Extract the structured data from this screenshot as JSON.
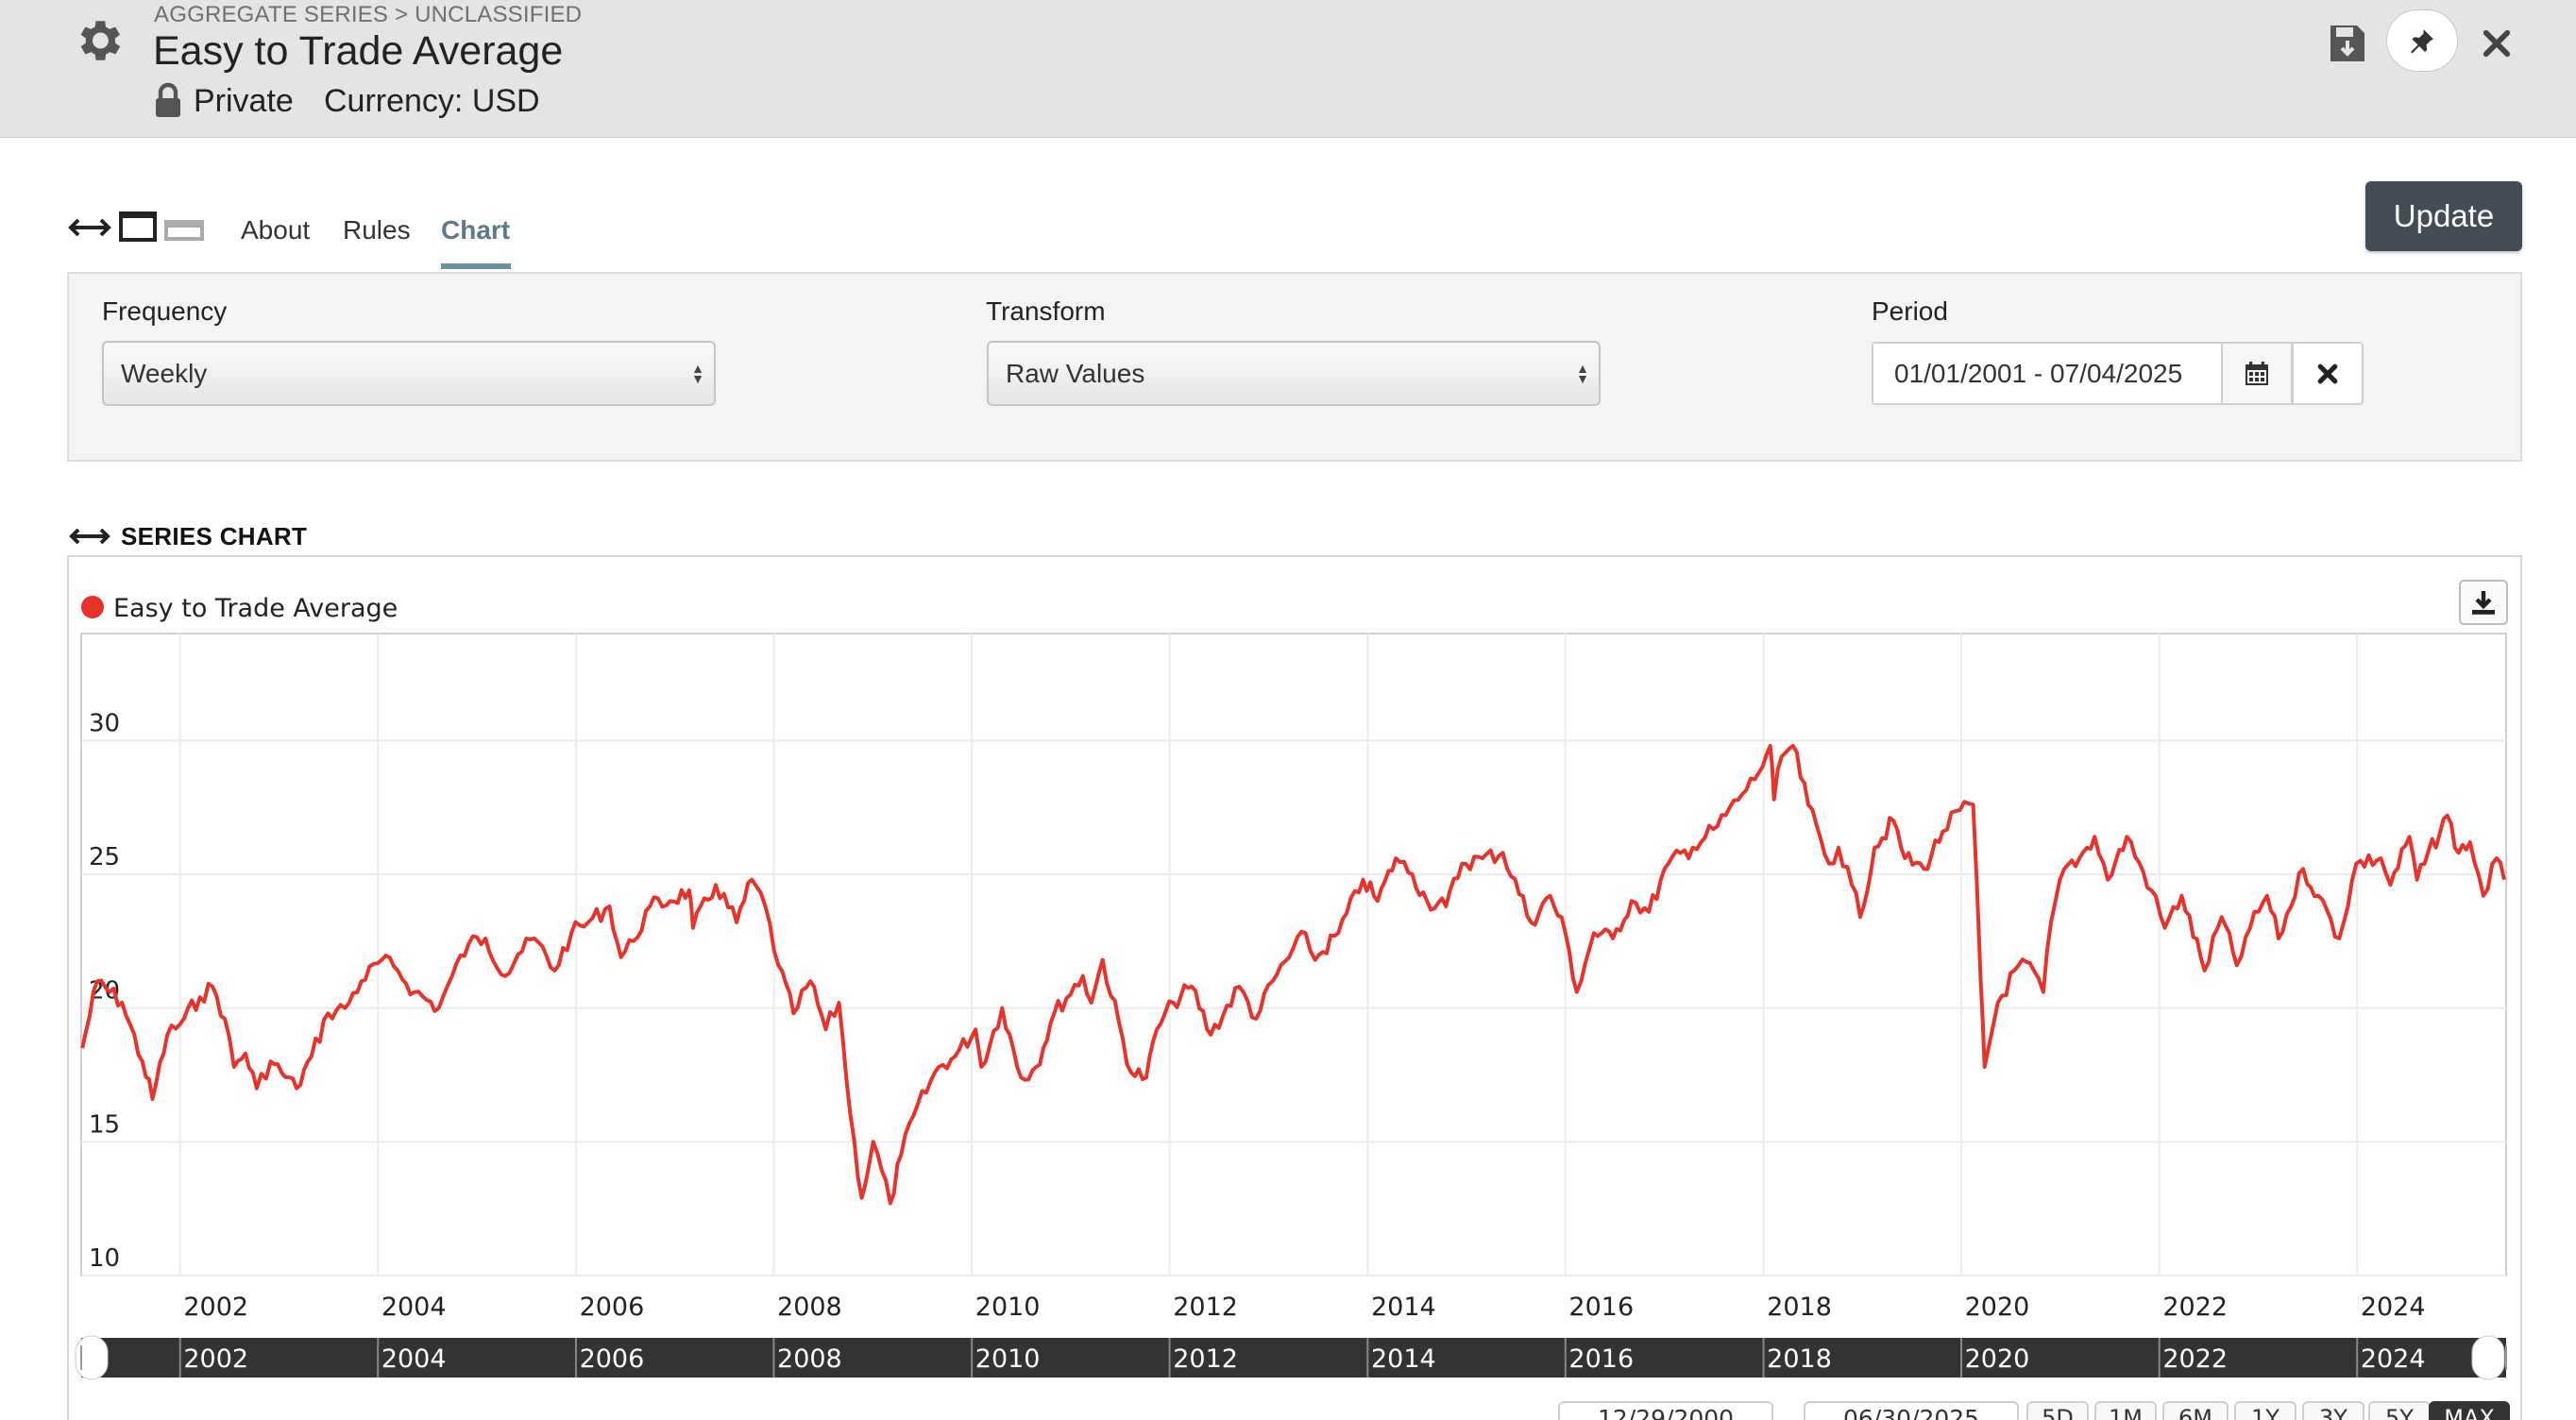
{
  "header": {
    "breadcrumb": "AGGREGATE SERIES > UNCLASSIFIED",
    "title": "Easy to Trade Average",
    "privacy": "Private",
    "currency": "Currency: USD"
  },
  "tabs": [
    {
      "label": "About"
    },
    {
      "label": "Rules"
    },
    {
      "label": "Chart",
      "active": true
    }
  ],
  "update_label": "Update",
  "filters": {
    "frequency": {
      "label": "Frequency",
      "value": "Weekly"
    },
    "transform": {
      "label": "Transform",
      "value": "Raw Values"
    },
    "period": {
      "label": "Period",
      "value": "01/01/2001 - 07/04/2025"
    }
  },
  "section_title": "SERIES CHART",
  "navigator": {
    "from": "12/29/2000",
    "to": "06/30/2025",
    "ranges": [
      "5D",
      "1M",
      "6M",
      "1Y",
      "3Y",
      "5Y",
      "MAX"
    ],
    "active_range": "MAX"
  },
  "colors": {
    "series": "#e8322a",
    "accent": "#6b8f9f",
    "header_bg": "#e4e4e4",
    "update_button": "#434c57"
  },
  "icons": [
    "gear-icon",
    "lock-icon",
    "save-icon",
    "pin-icon",
    "close-icon",
    "resize-arrows-icon",
    "layout-full-icon",
    "layout-half-icon",
    "calendar-icon",
    "clear-icon",
    "download-icon"
  ],
  "chart_data": {
    "type": "line",
    "title": "",
    "xlabel": "",
    "ylabel": "",
    "x_ticks": [
      "2002",
      "2004",
      "2006",
      "2008",
      "2010",
      "2012",
      "2014",
      "2016",
      "2018",
      "2020",
      "2022",
      "2024"
    ],
    "y_ticks": [
      10,
      15,
      20,
      25,
      30
    ],
    "ylim": [
      10,
      34
    ],
    "xlim": [
      "2001-01-01",
      "2025-07-04"
    ],
    "grid": true,
    "legend": "top-left",
    "series": [
      {
        "name": "Easy to Trade Average",
        "color": "#e8322a",
        "points": [
          [
            "2001-01-05",
            18.5
          ],
          [
            "2001-03-01",
            21.0
          ],
          [
            "2001-06-01",
            20.2
          ],
          [
            "2001-08-15",
            18.0
          ],
          [
            "2001-09-21",
            16.6
          ],
          [
            "2001-11-15",
            19.0
          ],
          [
            "2002-01-01",
            19.4
          ],
          [
            "2002-03-15",
            20.4
          ],
          [
            "2002-05-01",
            20.8
          ],
          [
            "2002-06-15",
            19.6
          ],
          [
            "2002-07-19",
            17.8
          ],
          [
            "2002-08-30",
            18.3
          ],
          [
            "2002-10-11",
            17.0
          ],
          [
            "2002-12-01",
            18.0
          ],
          [
            "2003-01-10",
            17.6
          ],
          [
            "2003-03-07",
            17.0
          ],
          [
            "2003-05-01",
            18.2
          ],
          [
            "2003-07-01",
            19.8
          ],
          [
            "2003-09-01",
            20.0
          ],
          [
            "2003-11-01",
            21.0
          ],
          [
            "2004-01-15",
            21.8
          ],
          [
            "2004-03-15",
            21.4
          ],
          [
            "2004-05-15",
            20.6
          ],
          [
            "2004-08-13",
            20.0
          ],
          [
            "2004-10-01",
            21.2
          ],
          [
            "2004-12-01",
            22.4
          ],
          [
            "2005-02-01",
            22.6
          ],
          [
            "2005-04-15",
            21.2
          ],
          [
            "2005-06-01",
            22.0
          ],
          [
            "2005-08-01",
            22.6
          ],
          [
            "2005-10-14",
            21.4
          ],
          [
            "2005-12-15",
            22.8
          ],
          [
            "2006-02-15",
            23.2
          ],
          [
            "2006-05-05",
            23.8
          ],
          [
            "2006-06-16",
            21.9
          ],
          [
            "2006-08-01",
            22.5
          ],
          [
            "2006-10-01",
            23.8
          ],
          [
            "2006-12-15",
            24.0
          ],
          [
            "2007-02-23",
            24.4
          ],
          [
            "2007-03-09",
            23.0
          ],
          [
            "2007-06-01",
            24.6
          ],
          [
            "2007-08-17",
            23.2
          ],
          [
            "2007-10-12",
            24.8
          ],
          [
            "2007-12-01",
            23.8
          ],
          [
            "2008-01-18",
            21.6
          ],
          [
            "2008-03-14",
            19.8
          ],
          [
            "2008-05-15",
            21.0
          ],
          [
            "2008-07-11",
            19.2
          ],
          [
            "2008-08-29",
            20.2
          ],
          [
            "2008-10-10",
            16.0
          ],
          [
            "2008-11-21",
            12.9
          ],
          [
            "2009-01-02",
            15.0
          ],
          [
            "2009-03-06",
            12.7
          ],
          [
            "2009-04-15",
            14.5
          ],
          [
            "2009-06-01",
            16.0
          ],
          [
            "2009-09-01",
            17.8
          ],
          [
            "2009-11-01",
            18.2
          ],
          [
            "2010-01-15",
            19.2
          ],
          [
            "2010-02-05",
            17.8
          ],
          [
            "2010-04-23",
            20.0
          ],
          [
            "2010-07-02",
            17.4
          ],
          [
            "2010-08-27",
            17.8
          ],
          [
            "2010-11-01",
            19.8
          ],
          [
            "2011-02-15",
            21.2
          ],
          [
            "2011-03-18",
            20.2
          ],
          [
            "2011-04-29",
            21.8
          ],
          [
            "2011-08-12",
            17.6
          ],
          [
            "2011-10-07",
            17.4
          ],
          [
            "2011-11-15",
            19.2
          ],
          [
            "2012-01-15",
            20.2
          ],
          [
            "2012-03-23",
            20.8
          ],
          [
            "2012-06-01",
            19.0
          ],
          [
            "2012-09-14",
            20.8
          ],
          [
            "2012-11-16",
            19.6
          ],
          [
            "2013-01-15",
            21.0
          ],
          [
            "2013-05-17",
            22.8
          ],
          [
            "2013-06-21",
            21.8
          ],
          [
            "2013-09-15",
            22.8
          ],
          [
            "2013-12-15",
            24.8
          ],
          [
            "2014-02-07",
            24.0
          ],
          [
            "2014-04-15",
            25.6
          ],
          [
            "2014-06-15",
            25.0
          ],
          [
            "2014-08-08",
            24.0
          ],
          [
            "2014-10-17",
            23.8
          ],
          [
            "2014-12-15",
            25.4
          ],
          [
            "2015-03-01",
            25.6
          ],
          [
            "2015-05-15",
            25.8
          ],
          [
            "2015-08-28",
            23.2
          ],
          [
            "2015-11-06",
            24.2
          ],
          [
            "2016-01-01",
            22.8
          ],
          [
            "2016-02-12",
            20.6
          ],
          [
            "2016-04-15",
            22.8
          ],
          [
            "2016-06-24",
            22.6
          ],
          [
            "2016-09-01",
            24.0
          ],
          [
            "2016-11-04",
            23.6
          ],
          [
            "2017-01-15",
            25.4
          ],
          [
            "2017-04-15",
            26.0
          ],
          [
            "2017-07-15",
            26.8
          ],
          [
            "2017-10-15",
            28.0
          ],
          [
            "2017-12-15",
            28.8
          ],
          [
            "2018-01-26",
            29.8
          ],
          [
            "2018-02-09",
            27.8
          ],
          [
            "2018-03-09",
            29.4
          ],
          [
            "2018-04-20",
            29.8
          ],
          [
            "2018-06-15",
            27.6
          ],
          [
            "2018-08-31",
            25.4
          ],
          [
            "2018-10-05",
            26.0
          ],
          [
            "2018-11-23",
            24.6
          ],
          [
            "2018-12-24",
            23.4
          ],
          [
            "2019-02-15",
            26.0
          ],
          [
            "2019-04-26",
            27.0
          ],
          [
            "2019-06-07",
            25.6
          ],
          [
            "2019-08-16",
            25.2
          ],
          [
            "2019-10-25",
            26.6
          ],
          [
            "2019-12-27",
            27.4
          ],
          [
            "2020-02-14",
            27.6
          ],
          [
            "2020-03-13",
            21.0
          ],
          [
            "2020-03-27",
            17.8
          ],
          [
            "2020-05-15",
            20.2
          ],
          [
            "2020-07-31",
            21.6
          ],
          [
            "2020-09-25",
            21.4
          ],
          [
            "2020-10-30",
            20.6
          ],
          [
            "2020-11-27",
            23.2
          ],
          [
            "2021-01-15",
            25.2
          ],
          [
            "2021-03-12",
            25.6
          ],
          [
            "2021-05-07",
            26.4
          ],
          [
            "2021-06-25",
            24.8
          ],
          [
            "2021-09-03",
            26.4
          ],
          [
            "2021-12-03",
            24.4
          ],
          [
            "2022-01-21",
            23.0
          ],
          [
            "2022-03-25",
            24.2
          ],
          [
            "2022-06-17",
            21.4
          ],
          [
            "2022-08-19",
            23.4
          ],
          [
            "2022-10-14",
            21.6
          ],
          [
            "2022-12-02",
            23.0
          ],
          [
            "2023-02-03",
            24.2
          ],
          [
            "2023-03-17",
            22.6
          ],
          [
            "2023-06-16",
            25.2
          ],
          [
            "2023-08-11",
            24.2
          ],
          [
            "2023-10-27",
            22.6
          ],
          [
            "2023-12-29",
            25.4
          ],
          [
            "2024-03-29",
            25.6
          ],
          [
            "2024-05-03",
            24.6
          ],
          [
            "2024-07-12",
            26.4
          ],
          [
            "2024-08-09",
            24.8
          ],
          [
            "2024-11-29",
            27.2
          ],
          [
            "2025-01-10",
            25.8
          ],
          [
            "2025-02-21",
            26.2
          ],
          [
            "2025-04-11",
            24.2
          ],
          [
            "2025-05-30",
            25.6
          ],
          [
            "2025-06-27",
            24.8
          ]
        ]
      }
    ]
  }
}
